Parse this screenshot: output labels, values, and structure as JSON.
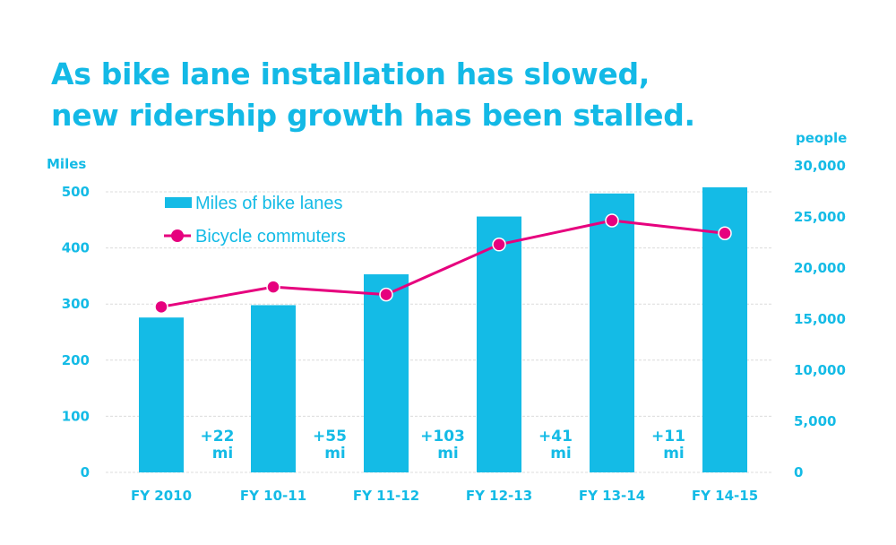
{
  "chart_data": {
    "type": "bar+line",
    "title": [
      "As bike lane installation has slowed,",
      "new ridership growth has been stalled."
    ],
    "categories": [
      "FY 2010",
      "FY 10-11",
      "FY 11-12",
      "FY 12-13",
      "FY 13-14",
      "FY 14-15"
    ],
    "series": [
      {
        "name": "Miles of bike lanes",
        "type": "bar",
        "axis": "left",
        "values": [
          276,
          298,
          353,
          456,
          497,
          508
        ],
        "color": "#14bbe6"
      },
      {
        "name": "Bicycle commuters",
        "type": "line",
        "axis": "right",
        "values": [
          16200,
          18150,
          17400,
          22300,
          24650,
          23400
        ],
        "color": "#e6007e"
      }
    ],
    "left_axis": {
      "label": "Miles",
      "ylim": [
        0,
        500
      ],
      "ticks": [
        "0",
        "100",
        "200",
        "300",
        "400",
        "500"
      ]
    },
    "right_axis": {
      "label": "people",
      "ylim": [
        0,
        30000
      ],
      "ticks": [
        "0",
        "5,000",
        "10,000",
        "15,000",
        "20,000",
        "25,000",
        "30,000"
      ]
    },
    "annotations": [
      [
        "+22",
        "mi"
      ],
      [
        "+55",
        "mi"
      ],
      [
        "+103",
        "mi"
      ],
      [
        "+41",
        "mi"
      ],
      [
        "+11",
        "mi"
      ]
    ],
    "grid": true,
    "legend_position": "top-left"
  }
}
